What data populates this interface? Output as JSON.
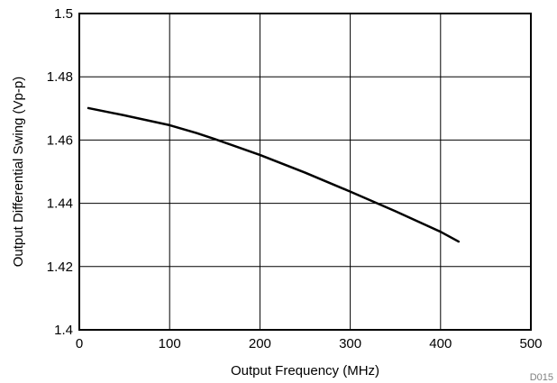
{
  "chart_data": {
    "type": "line",
    "title": "",
    "xlabel": "Output Frequency (MHz)",
    "ylabel": "Output Differential Swing (Vp-p)",
    "xlim": [
      0,
      500
    ],
    "ylim": [
      1.4,
      1.5
    ],
    "xticks": [
      0,
      100,
      200,
      300,
      400,
      500
    ],
    "yticks": [
      1.4,
      1.42,
      1.44,
      1.46,
      1.48,
      1.5
    ],
    "xtick_labels": [
      "0",
      "100",
      "200",
      "300",
      "400",
      "500"
    ],
    "ytick_labels": [
      "1.4",
      "1.42",
      "1.44",
      "1.46",
      "1.48",
      "1.5"
    ],
    "grid": true,
    "legend": "none",
    "series": [
      {
        "x": [
          10,
          50,
          100,
          130,
          150,
          200,
          250,
          300,
          350,
          400,
          420
        ],
        "y": [
          1.4701,
          1.4678,
          1.4647,
          1.4622,
          1.4603,
          1.4553,
          1.4497,
          1.4437,
          1.4375,
          1.431,
          1.4279
        ],
        "color": "#000000"
      }
    ],
    "figure_id": "D015"
  }
}
